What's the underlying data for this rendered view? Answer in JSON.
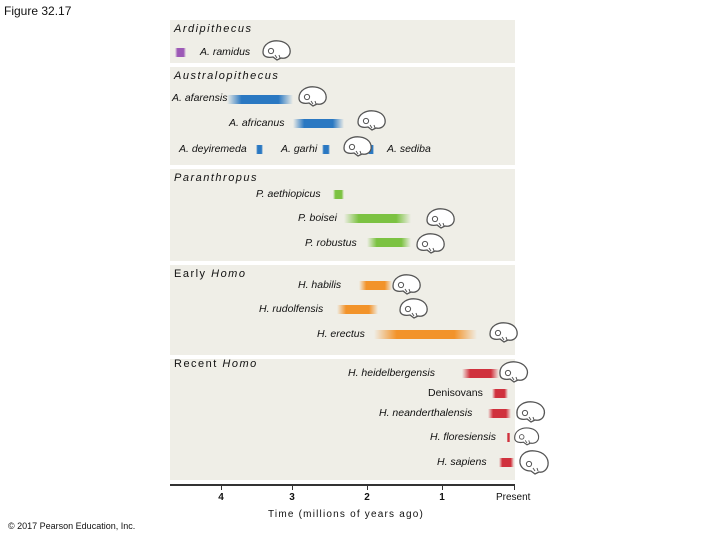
{
  "figure_title": "Figure 32.17",
  "copyright": "© 2017 Pearson Education, Inc.",
  "groups": [
    {
      "label": "Ardipithecus"
    },
    {
      "label": "Australopithecus"
    },
    {
      "label": "Paranthropus"
    },
    {
      "label_plain": "Early ",
      "label_italic": "Homo"
    },
    {
      "label_plain": "Recent ",
      "label_italic": "Homo"
    }
  ],
  "species": [
    {
      "name": "A. ramidus",
      "start_mya": 4.6,
      "end_mya": 4.45,
      "color": "#9c59b6"
    },
    {
      "name": "A. afarensis",
      "start_mya": 3.9,
      "end_mya": 3.0,
      "color": "#2a78c2"
    },
    {
      "name": "A. africanus",
      "start_mya": 3.0,
      "end_mya": 2.3,
      "color": "#2a78c2"
    },
    {
      "name": "A. deyiremeda",
      "start_mya": 3.5,
      "end_mya": 3.4,
      "color": "#2a78c2"
    },
    {
      "name": "A. garhi",
      "start_mya": 2.6,
      "end_mya": 2.5,
      "color": "#2a78c2"
    },
    {
      "name": "A. sediba",
      "start_mya": 1.98,
      "end_mya": 1.9,
      "color": "#2a78c2"
    },
    {
      "name": "P. aethiopicus",
      "start_mya": 2.45,
      "end_mya": 2.3,
      "color": "#7cc242"
    },
    {
      "name": "P. boisei",
      "start_mya": 2.3,
      "end_mya": 1.4,
      "color": "#7cc242"
    },
    {
      "name": "P. robustus",
      "start_mya": 2.0,
      "end_mya": 1.4,
      "color": "#7cc242"
    },
    {
      "name": "H. habilis",
      "start_mya": 2.1,
      "end_mya": 1.65,
      "color": "#f2932a"
    },
    {
      "name": "H. rudolfensis",
      "start_mya": 2.4,
      "end_mya": 1.85,
      "color": "#f2932a"
    },
    {
      "name": "H. erectus",
      "start_mya": 1.9,
      "end_mya": 0.5,
      "color": "#f2932a"
    },
    {
      "name": "H. heidelbergensis",
      "start_mya": 0.7,
      "end_mya": 0.2,
      "color": "#d0313d"
    },
    {
      "name": "Denisovans",
      "start_mya": 0.3,
      "end_mya": 0.08,
      "color": "#d0313d"
    },
    {
      "name": "H. neanderthalensis",
      "start_mya": 0.35,
      "end_mya": 0.04,
      "color": "#d0313d"
    },
    {
      "name": "H. floresiensis",
      "start_mya": 0.1,
      "end_mya": 0.05,
      "color": "#d0313d"
    },
    {
      "name": "H. sapiens",
      "start_mya": 0.2,
      "end_mya": 0.0,
      "color": "#d0313d"
    }
  ],
  "axis": {
    "title": "Time (millions of years ago)",
    "ticks": [
      "4",
      "3",
      "2",
      "1"
    ],
    "present_label": "Present"
  }
}
